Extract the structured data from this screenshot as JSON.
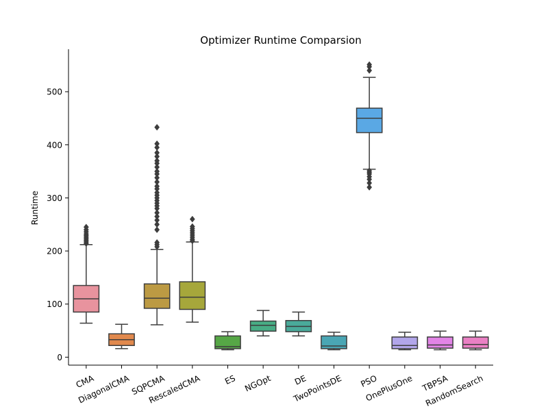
{
  "chart_data": {
    "type": "box",
    "title": "Optimizer Runtime Comparsion",
    "xlabel": "",
    "ylabel": "Runtime",
    "ylim": [
      -15,
      580
    ],
    "yticks": [
      0,
      100,
      200,
      300,
      400,
      500
    ],
    "grid": false,
    "legend": "none",
    "categories": [
      "CMA",
      "DiagonalCMA",
      "SQPCMA",
      "RescaledCMA",
      "ES",
      "NGOpt",
      "DE",
      "TwoPointsDE",
      "PSO",
      "OnePlusOne",
      "TBPSA",
      "RandomSearch"
    ],
    "series": [
      {
        "category": "CMA",
        "color": "#e8939e",
        "whisker_low": 64,
        "q1": 85,
        "median": 110,
        "q3": 135,
        "whisker_high": 212,
        "outliers": [
          214,
          217,
          220,
          223,
          226,
          229,
          232,
          236,
          240,
          245
        ]
      },
      {
        "category": "DiagonalCMA",
        "color": "#e1894d",
        "whisker_low": 16,
        "q1": 22,
        "median": 33,
        "q3": 44,
        "whisker_high": 62,
        "outliers": []
      },
      {
        "category": "SQPCMA",
        "color": "#bc9a43",
        "whisker_low": 61,
        "q1": 92,
        "median": 111,
        "q3": 138,
        "whisker_high": 203,
        "outliers": [
          208,
          212,
          216,
          240,
          250,
          258,
          265,
          272,
          280,
          285,
          290,
          295,
          300,
          305,
          310,
          317,
          322,
          330,
          338,
          345,
          350,
          358,
          365,
          370,
          378,
          385,
          395,
          402,
          433
        ]
      },
      {
        "category": "RescaledCMA",
        "color": "#a6a73b",
        "whisker_low": 66,
        "q1": 90,
        "median": 113,
        "q3": 142,
        "whisker_high": 217,
        "outliers": [
          219,
          222,
          226,
          230,
          234,
          238,
          242,
          246,
          260
        ]
      },
      {
        "category": "ES",
        "color": "#56a746",
        "whisker_low": 14,
        "q1": 16,
        "median": 20,
        "q3": 40,
        "whisker_high": 48,
        "outliers": []
      },
      {
        "category": "NGOpt",
        "color": "#48ac85",
        "whisker_low": 40,
        "q1": 49,
        "median": 60,
        "q3": 68,
        "whisker_high": 88,
        "outliers": []
      },
      {
        "category": "DE",
        "color": "#4aaa9a",
        "whisker_low": 40,
        "q1": 48,
        "median": 58,
        "q3": 69,
        "whisker_high": 85,
        "outliers": []
      },
      {
        "category": "TwoPointsDE",
        "color": "#4aa6b4",
        "whisker_low": 14,
        "q1": 16,
        "median": 21,
        "q3": 40,
        "whisker_high": 47,
        "outliers": []
      },
      {
        "category": "PSO",
        "color": "#5aa8e4",
        "whisker_low": 354,
        "q1": 423,
        "median": 450,
        "q3": 469,
        "whisker_high": 527,
        "outliers": [
          320,
          328,
          335,
          340,
          345,
          348,
          351,
          540,
          547,
          551
        ]
      },
      {
        "category": "OnePlusOne",
        "color": "#b2a6ea",
        "whisker_low": 14,
        "q1": 16,
        "median": 22,
        "q3": 38,
        "whisker_high": 47,
        "outliers": []
      },
      {
        "category": "TBPSA",
        "color": "#e284e6",
        "whisker_low": 14,
        "q1": 17,
        "median": 23,
        "q3": 38,
        "whisker_high": 49,
        "outliers": []
      },
      {
        "category": "RandomSearch",
        "color": "#ea80c4",
        "whisker_low": 14,
        "q1": 17,
        "median": 24,
        "q3": 38,
        "whisker_high": 49,
        "outliers": []
      }
    ]
  }
}
